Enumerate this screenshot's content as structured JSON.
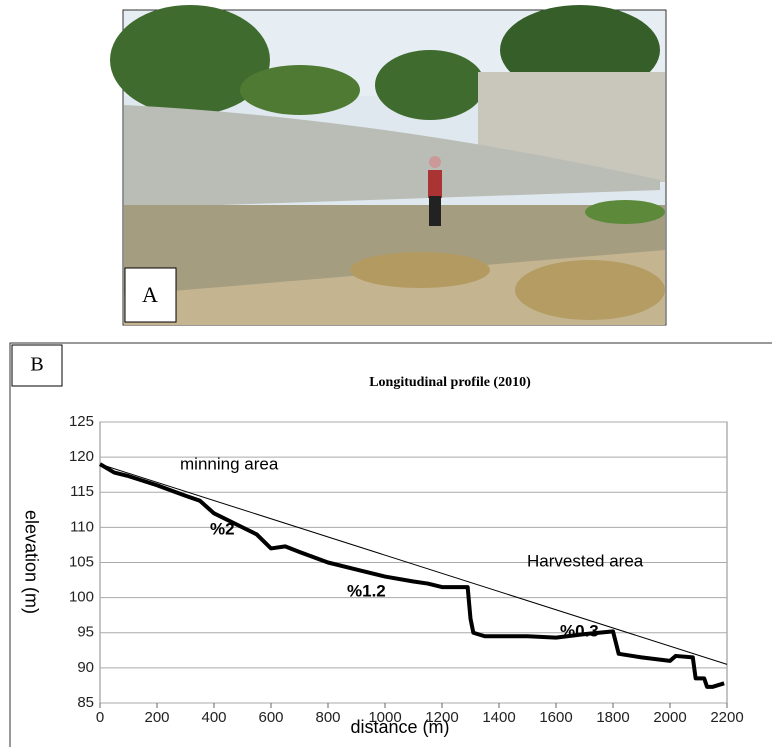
{
  "panels": [
    "A",
    "B"
  ],
  "chart_data": {
    "type": "line",
    "title": "Longitudinal profile (2010)",
    "xlabel": "distance (m)",
    "ylabel": "elevation (m)",
    "xlim": [
      0,
      2200
    ],
    "xticks": [
      0,
      200,
      400,
      600,
      800,
      1000,
      1200,
      1400,
      1600,
      1800,
      2000,
      2200
    ],
    "ylim": [
      85,
      125
    ],
    "yticks": [
      85,
      90,
      95,
      100,
      105,
      110,
      115,
      120,
      125
    ],
    "grid": true,
    "series": [
      {
        "color": "#000000",
        "width": 4,
        "x": [
          0,
          50,
          100,
          200,
          300,
          350,
          400,
          500,
          550,
          600,
          650,
          700,
          800,
          900,
          1000,
          1100,
          1150,
          1200,
          1290,
          1300,
          1310,
          1350,
          1500,
          1600,
          1700,
          1800,
          1820,
          1900,
          2000,
          2020,
          2080,
          2090,
          2120,
          2130,
          2150,
          2190
        ],
        "values": [
          119,
          117.8,
          117.3,
          116,
          114.5,
          113.8,
          112,
          110,
          109,
          107,
          107.3,
          106.5,
          105,
          104,
          103,
          102.3,
          102,
          101.5,
          101.5,
          97,
          95,
          94.5,
          94.5,
          94.3,
          94.8,
          95.2,
          92,
          91.5,
          91,
          91.7,
          91.5,
          88.5,
          88.5,
          87.3,
          87.3,
          87.8
        ]
      },
      {
        "color": "#000000",
        "width": 1,
        "x": [
          0,
          2200
        ],
        "values": [
          119,
          90.5
        ]
      }
    ],
    "annotations": [
      "minning area",
      "%2",
      "%1.2",
      "Harvested area",
      "%0.3"
    ]
  }
}
